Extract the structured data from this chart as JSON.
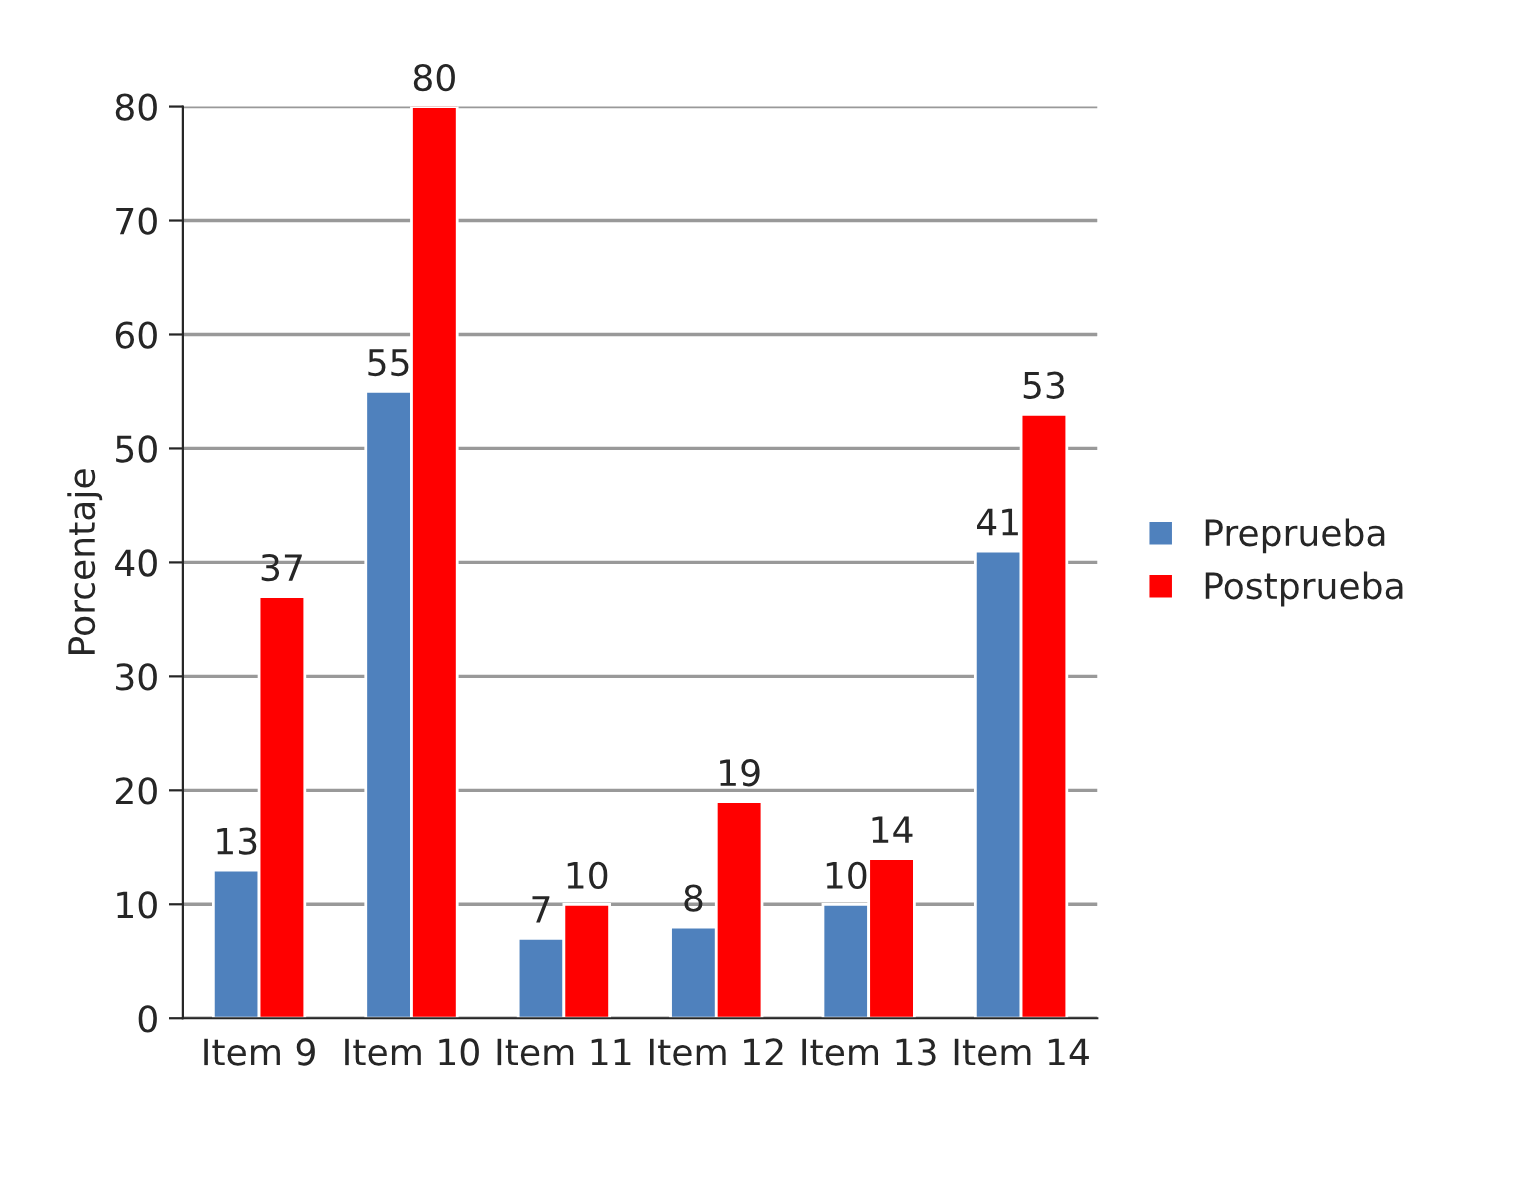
{
  "chart_data": {
    "type": "bar",
    "ylabel": "Porcentaje",
    "categories": [
      "Item 9",
      "Item 10",
      "Item 11",
      "Item 12",
      "Item 13",
      "Item 14"
    ],
    "series": [
      {
        "name": "Preprueba",
        "color": "#4f81bd",
        "values": [
          13,
          55,
          7,
          8,
          10,
          41
        ]
      },
      {
        "name": "Postprueba",
        "color": "#ff0000",
        "values": [
          37,
          80,
          10,
          19,
          14,
          53
        ]
      }
    ],
    "ylim": [
      0,
      80
    ],
    "yticks": [
      0,
      10,
      20,
      30,
      40,
      50,
      60,
      70,
      80
    ],
    "grid": "y",
    "legend": "right",
    "data_labels": true
  }
}
